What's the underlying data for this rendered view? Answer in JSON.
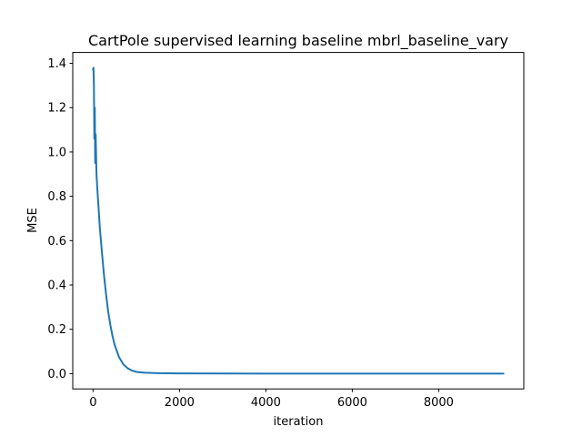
{
  "chart_data": {
    "type": "line",
    "title": "CartPole supervised learning baseline mbrl_baseline_vary",
    "xlabel": "iteration",
    "ylabel": "MSE",
    "xlim": [
      -470,
      9970
    ],
    "ylim": [
      -0.069,
      1.449
    ],
    "grid": false,
    "legend": "none",
    "color": "#1f77b4",
    "x_ticks": [
      0,
      2000,
      4000,
      6000,
      8000
    ],
    "x_tick_labels": [
      "0",
      "2000",
      "4000",
      "6000",
      "8000"
    ],
    "y_ticks": [
      0.0,
      0.2,
      0.4,
      0.6,
      0.8,
      1.0,
      1.2,
      1.4
    ],
    "y_tick_labels": [
      "0.0",
      "0.2",
      "0.4",
      "0.6",
      "0.8",
      "1.0",
      "1.2",
      "1.4"
    ],
    "series": [
      {
        "x": [
          0,
          10,
          20,
          30,
          40,
          50,
          60,
          80,
          100,
          130,
          160,
          200,
          250,
          300,
          350,
          400,
          450,
          500,
          600,
          700,
          800,
          900,
          1000,
          1200,
          1500,
          2000,
          3000,
          4000,
          5000,
          6000,
          7000,
          8000,
          9000,
          9500
        ],
        "y": [
          1.37,
          1.38,
          1.3,
          1.06,
          1.2,
          0.95,
          1.08,
          0.9,
          0.83,
          0.74,
          0.65,
          0.56,
          0.45,
          0.36,
          0.28,
          0.22,
          0.17,
          0.13,
          0.075,
          0.042,
          0.024,
          0.014,
          0.008,
          0.004,
          0.002,
          0.001,
          0.0005,
          0.0003,
          0.0002,
          0.0002,
          0.0001,
          0.0001,
          0.0001,
          0.0001
        ]
      }
    ]
  }
}
